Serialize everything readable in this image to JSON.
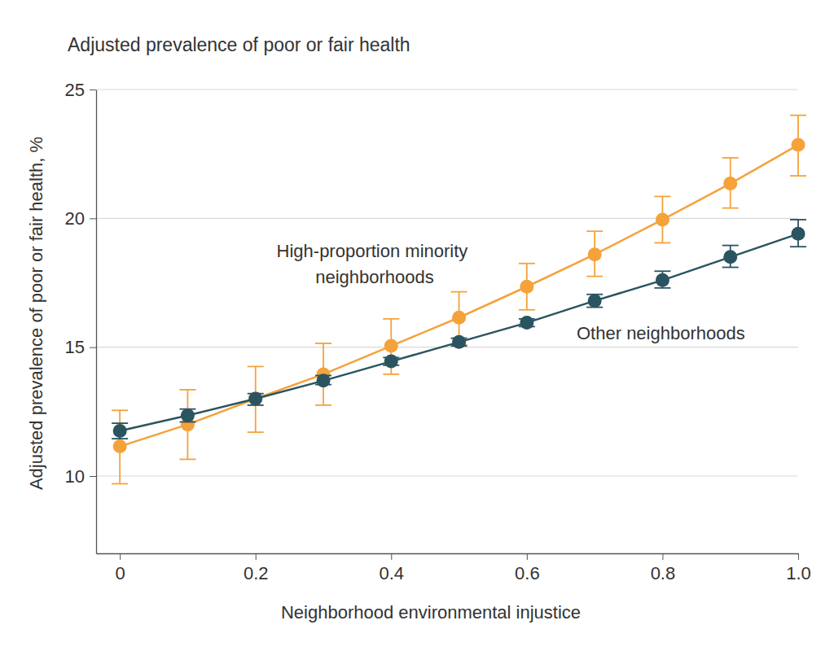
{
  "chart_data": {
    "type": "line",
    "title": "Adjusted prevalence of poor or fair health",
    "x_label": "Neighborhood environmental injustice",
    "y_label": "Adjusted prevalence of poor or fair health, %",
    "x": [
      0,
      0.1,
      0.2,
      0.3,
      0.4,
      0.5,
      0.6,
      0.7,
      0.8,
      0.9,
      1.0
    ],
    "series": [
      {
        "name": "High-proportion minority neighborhoods",
        "color": "#f5a23a",
        "marker": "circle",
        "line_style": "solid",
        "values": [
          11.15,
          12.0,
          13.0,
          13.95,
          15.05,
          16.15,
          17.35,
          18.6,
          19.95,
          21.35,
          22.85
        ],
        "ci_lower": [
          9.7,
          10.65,
          11.7,
          12.75,
          13.95,
          15.1,
          16.45,
          17.75,
          19.05,
          20.4,
          21.65
        ],
        "ci_upper": [
          12.55,
          13.35,
          14.25,
          15.15,
          16.1,
          17.15,
          18.25,
          19.5,
          20.85,
          22.35,
          24.0
        ]
      },
      {
        "name": "Other neighborhoods",
        "color": "#2a5460",
        "marker": "circle",
        "line_style": "solid",
        "values": [
          11.75,
          12.35,
          13.0,
          13.7,
          14.45,
          15.2,
          15.95,
          16.8,
          17.6,
          18.5,
          19.4
        ],
        "ci_lower": [
          11.45,
          12.1,
          12.75,
          13.55,
          14.3,
          15.05,
          15.8,
          16.55,
          17.3,
          18.1,
          18.9
        ],
        "ci_upper": [
          12.05,
          12.6,
          13.2,
          13.9,
          14.6,
          15.35,
          16.1,
          17.05,
          17.95,
          18.95,
          19.95
        ]
      }
    ],
    "xlim": [
      -0.035,
      1.0
    ],
    "xticks": [
      0,
      0.2,
      0.4,
      0.6,
      0.8,
      {
        "value": 1.0,
        "label": "1.0"
      }
    ],
    "ylim": [
      7,
      25
    ],
    "yticks": [
      10,
      15,
      20,
      25
    ],
    "grid": true
  }
}
